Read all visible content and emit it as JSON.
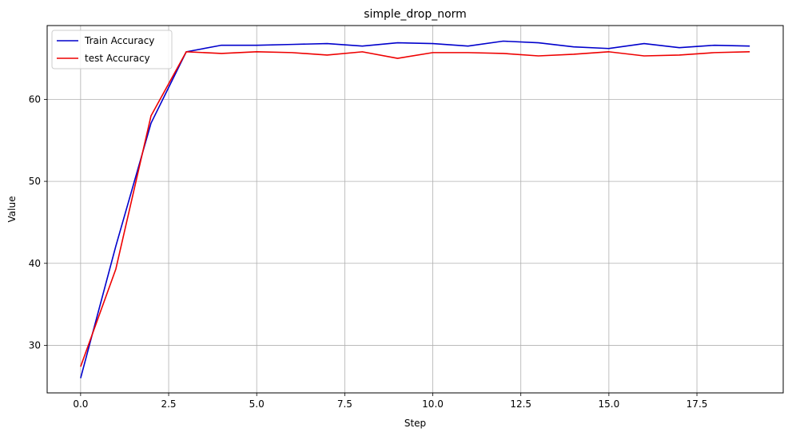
{
  "chart_data": {
    "type": "line",
    "title": "simple_drop_norm",
    "xlabel": "Step",
    "ylabel": "Value",
    "x": [
      0,
      1,
      2,
      3,
      4,
      5,
      6,
      7,
      8,
      9,
      10,
      11,
      12,
      13,
      14,
      15,
      16,
      17,
      18,
      19
    ],
    "xlim": [
      -0.95,
      19.95
    ],
    "ylim": [
      24.2,
      69.0
    ],
    "xticks": [
      0.0,
      2.5,
      5.0,
      7.5,
      10.0,
      12.5,
      15.0,
      17.5
    ],
    "xtick_labels": [
      "0.0",
      "2.5",
      "5.0",
      "7.5",
      "10.0",
      "12.5",
      "15.0",
      "17.5"
    ],
    "yticks": [
      30,
      40,
      50,
      60
    ],
    "ytick_labels": [
      "30",
      "40",
      "50",
      "60"
    ],
    "grid": true,
    "legend_position": "top-left",
    "series": [
      {
        "name": "Train Accuracy",
        "color": "#0000cc",
        "values": [
          26.0,
          42.1,
          57.1,
          65.8,
          66.6,
          66.6,
          66.7,
          66.8,
          66.5,
          66.9,
          66.8,
          66.5,
          67.1,
          66.9,
          66.4,
          66.2,
          66.8,
          66.3,
          66.6,
          66.5
        ]
      },
      {
        "name": "test Accuracy",
        "color": "#ee0000",
        "values": [
          27.4,
          39.3,
          58.0,
          65.8,
          65.6,
          65.8,
          65.7,
          65.4,
          65.8,
          65.0,
          65.7,
          65.7,
          65.6,
          65.3,
          65.5,
          65.8,
          65.3,
          65.4,
          65.7,
          65.8
        ]
      }
    ]
  }
}
